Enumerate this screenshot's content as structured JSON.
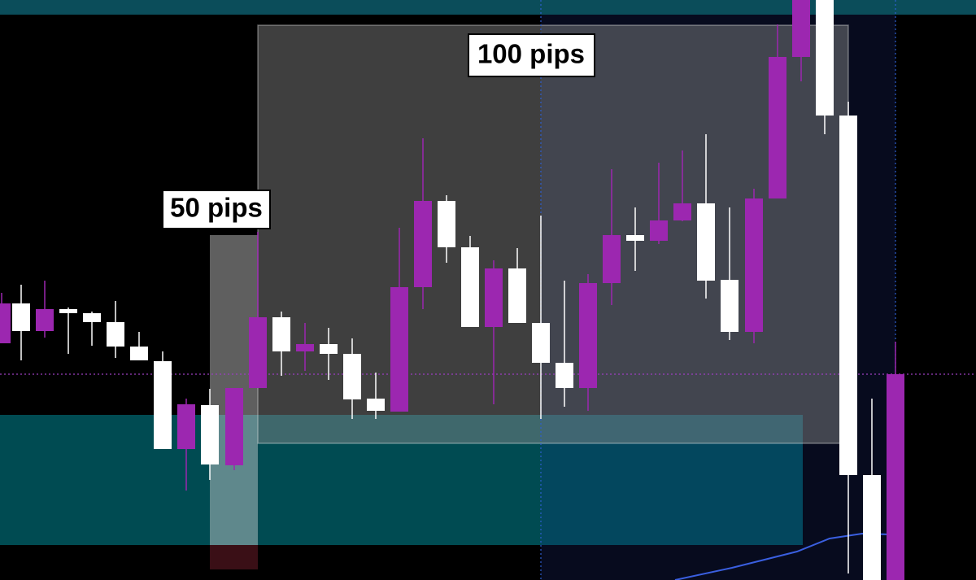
{
  "annotations": {
    "range_large": "100 pips",
    "range_small": "50 pips"
  }
}
